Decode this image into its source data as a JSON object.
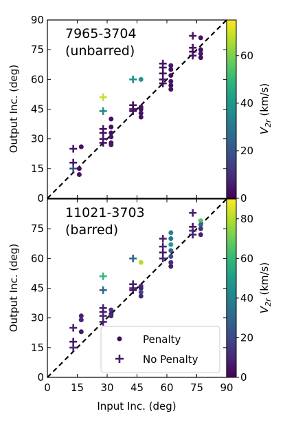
{
  "chart_data": [
    {
      "type": "scatter",
      "annotation": [
        "7965-3704",
        "(unbarred)"
      ],
      "xlabel": "",
      "ylabel": "Output Inc. (deg)",
      "xlim": [
        0,
        90
      ],
      "ylim": [
        0,
        90
      ],
      "xticks": [
        "0",
        "15",
        "30",
        "45",
        "60",
        "75",
        "90"
      ],
      "yticks": [
        "0",
        "15",
        "30",
        "45",
        "60",
        "75",
        "90"
      ],
      "reference_line": {
        "style": "dashed",
        "from": [
          0,
          0
        ],
        "to": [
          90,
          90
        ]
      },
      "colorbar": {
        "label": "V_2r (km/s)",
        "min": 0,
        "max": 75,
        "ticks": [
          "0",
          "20",
          "40",
          "60"
        ]
      },
      "series": [
        {
          "name": "Penalty",
          "marker": "circle",
          "points": [
            {
              "x": 17,
              "y": 26,
              "c": 3
            },
            {
              "x": 16,
              "y": 15,
              "c": 3
            },
            {
              "x": 16,
              "y": 12,
              "c": 4
            },
            {
              "x": 32,
              "y": 40,
              "c": 4
            },
            {
              "x": 32,
              "y": 36,
              "c": 3
            },
            {
              "x": 32,
              "y": 33,
              "c": 3
            },
            {
              "x": 32,
              "y": 31,
              "c": 4
            },
            {
              "x": 32,
              "y": 28,
              "c": 3
            },
            {
              "x": 32,
              "y": 27,
              "c": 5
            },
            {
              "x": 47,
              "y": 60,
              "c": 40
            },
            {
              "x": 47,
              "y": 46,
              "c": 4
            },
            {
              "x": 47,
              "y": 45,
              "c": 3
            },
            {
              "x": 47,
              "y": 43,
              "c": 4
            },
            {
              "x": 47,
              "y": 41,
              "c": 3
            },
            {
              "x": 62,
              "y": 67,
              "c": 5
            },
            {
              "x": 62,
              "y": 65,
              "c": 4
            },
            {
              "x": 62,
              "y": 62,
              "c": 3
            },
            {
              "x": 62,
              "y": 59,
              "c": 4
            },
            {
              "x": 62,
              "y": 57,
              "c": 3
            },
            {
              "x": 62,
              "y": 55,
              "c": 4
            },
            {
              "x": 77,
              "y": 81,
              "c": 4
            },
            {
              "x": 77,
              "y": 75,
              "c": 3
            },
            {
              "x": 77,
              "y": 73,
              "c": 4
            },
            {
              "x": 77,
              "y": 71,
              "c": 3
            }
          ]
        },
        {
          "name": "No Penalty",
          "marker": "plus",
          "points": [
            {
              "x": 13,
              "y": 25,
              "c": 5
            },
            {
              "x": 13,
              "y": 18,
              "c": 4
            },
            {
              "x": 13,
              "y": 15,
              "c": 18
            },
            {
              "x": 28,
              "y": 51,
              "c": 68
            },
            {
              "x": 28,
              "y": 44,
              "c": 36
            },
            {
              "x": 28,
              "y": 35,
              "c": 4
            },
            {
              "x": 28,
              "y": 33,
              "c": 3
            },
            {
              "x": 28,
              "y": 30,
              "c": 4
            },
            {
              "x": 28,
              "y": 28,
              "c": 3
            },
            {
              "x": 43,
              "y": 60,
              "c": 38
            },
            {
              "x": 43,
              "y": 47,
              "c": 4
            },
            {
              "x": 43,
              "y": 45,
              "c": 3
            },
            {
              "x": 43,
              "y": 44,
              "c": 4
            },
            {
              "x": 58,
              "y": 68,
              "c": 5
            },
            {
              "x": 58,
              "y": 66,
              "c": 4
            },
            {
              "x": 58,
              "y": 63,
              "c": 3
            },
            {
              "x": 58,
              "y": 60,
              "c": 4
            },
            {
              "x": 58,
              "y": 58,
              "c": 3
            },
            {
              "x": 73,
              "y": 82,
              "c": 5
            },
            {
              "x": 73,
              "y": 76,
              "c": 4
            },
            {
              "x": 73,
              "y": 74,
              "c": 3
            },
            {
              "x": 73,
              "y": 72,
              "c": 4
            }
          ]
        }
      ]
    },
    {
      "type": "scatter",
      "annotation": [
        "11021-3703",
        "(barred)"
      ],
      "xlabel": "Input Inc. (deg)",
      "ylabel": "Output Inc. (deg)",
      "xlim": [
        0,
        90
      ],
      "ylim": [
        0,
        90
      ],
      "xticks": [
        "0",
        "15",
        "30",
        "45",
        "60",
        "75",
        "90"
      ],
      "yticks": [
        "0",
        "15",
        "30",
        "45",
        "60",
        "75"
      ],
      "reference_line": {
        "style": "dashed",
        "from": [
          0,
          0
        ],
        "to": [
          90,
          90
        ]
      },
      "legend": {
        "placement": "lower-right",
        "entries": [
          "Penalty",
          "No Penalty"
        ]
      },
      "colorbar": {
        "label": "V_2r (km/s)",
        "min": 0,
        "max": 90,
        "ticks": [
          "0",
          "20",
          "40",
          "60",
          "80"
        ]
      },
      "series": [
        {
          "name": "Penalty",
          "marker": "circle",
          "points": [
            {
              "x": 17,
              "y": 31,
              "c": 8
            },
            {
              "x": 17,
              "y": 29,
              "c": 10
            },
            {
              "x": 17,
              "y": 23,
              "c": 6
            },
            {
              "x": 32,
              "y": 34,
              "c": 12
            },
            {
              "x": 32,
              "y": 32,
              "c": 8
            },
            {
              "x": 32,
              "y": 31,
              "c": 10
            },
            {
              "x": 47,
              "y": 58,
              "c": 80
            },
            {
              "x": 47,
              "y": 46,
              "c": 12
            },
            {
              "x": 47,
              "y": 45,
              "c": 8
            },
            {
              "x": 47,
              "y": 43,
              "c": 20
            },
            {
              "x": 47,
              "y": 41,
              "c": 10
            },
            {
              "x": 62,
              "y": 73,
              "c": 40
            },
            {
              "x": 62,
              "y": 70,
              "c": 35
            },
            {
              "x": 62,
              "y": 67,
              "c": 50
            },
            {
              "x": 62,
              "y": 64,
              "c": 30
            },
            {
              "x": 62,
              "y": 61,
              "c": 20
            },
            {
              "x": 62,
              "y": 58,
              "c": 12
            },
            {
              "x": 62,
              "y": 56,
              "c": 8
            },
            {
              "x": 77,
              "y": 79,
              "c": 65
            },
            {
              "x": 77,
              "y": 77,
              "c": 30
            },
            {
              "x": 77,
              "y": 75,
              "c": 12
            },
            {
              "x": 77,
              "y": 72,
              "c": 8
            }
          ]
        },
        {
          "name": "No Penalty",
          "marker": "plus",
          "points": [
            {
              "x": 13,
              "y": 25,
              "c": 8
            },
            {
              "x": 13,
              "y": 18,
              "c": 6
            },
            {
              "x": 13,
              "y": 15,
              "c": 10
            },
            {
              "x": 28,
              "y": 51,
              "c": 60
            },
            {
              "x": 28,
              "y": 44,
              "c": 30
            },
            {
              "x": 28,
              "y": 35,
              "c": 8
            },
            {
              "x": 28,
              "y": 33,
              "c": 6
            },
            {
              "x": 28,
              "y": 31,
              "c": 10
            },
            {
              "x": 28,
              "y": 28,
              "c": 8
            },
            {
              "x": 43,
              "y": 60,
              "c": 30
            },
            {
              "x": 43,
              "y": 47,
              "c": 8
            },
            {
              "x": 43,
              "y": 45,
              "c": 10
            },
            {
              "x": 43,
              "y": 44,
              "c": 6
            },
            {
              "x": 58,
              "y": 70,
              "c": 8
            },
            {
              "x": 58,
              "y": 66,
              "c": 10
            },
            {
              "x": 58,
              "y": 63,
              "c": 6
            },
            {
              "x": 58,
              "y": 60,
              "c": 8
            },
            {
              "x": 73,
              "y": 83,
              "c": 8
            },
            {
              "x": 73,
              "y": 76,
              "c": 6
            },
            {
              "x": 73,
              "y": 74,
              "c": 10
            },
            {
              "x": 73,
              "y": 72,
              "c": 8
            }
          ]
        }
      ]
    }
  ],
  "legend_colors": {
    "penalty": "#3b0f55",
    "no_penalty": "#4a1a63"
  },
  "viridis": [
    "#440154",
    "#482878",
    "#3e4989",
    "#31688e",
    "#26828e",
    "#1f9e89",
    "#35b779",
    "#6ece58",
    "#b5de2b",
    "#fde725"
  ]
}
